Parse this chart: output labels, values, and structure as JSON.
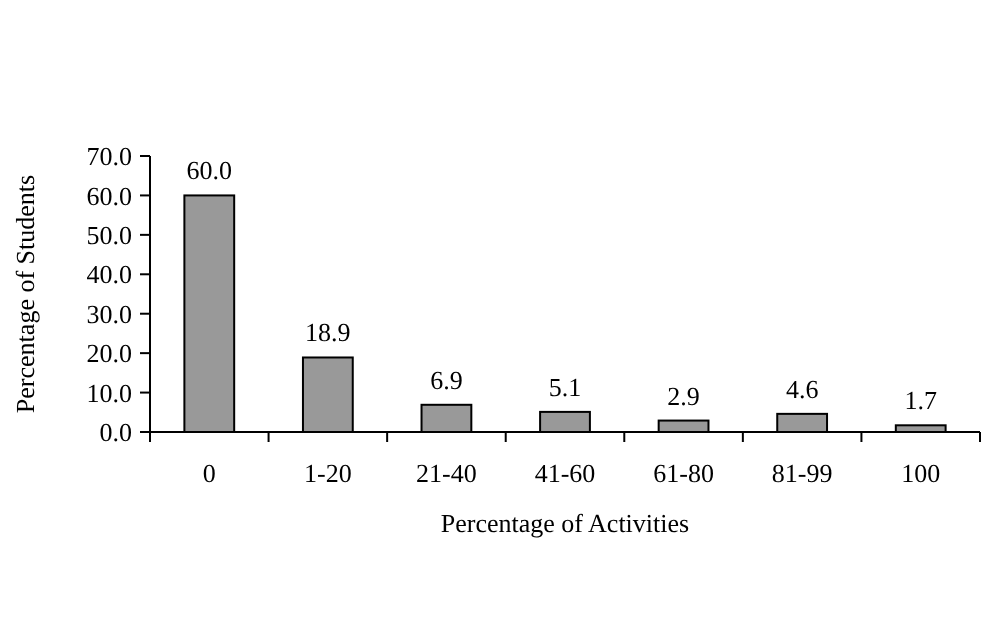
{
  "chart_data": {
    "type": "bar",
    "xlabel": "Percentage of Activities",
    "ylabel": "Percentage of Students",
    "categories": [
      "0",
      "1-20",
      "21-40",
      "41-60",
      "61-80",
      "81-99",
      "100"
    ],
    "values": [
      60.0,
      18.9,
      6.9,
      5.1,
      2.9,
      4.6,
      1.7
    ],
    "value_labels": [
      "60.0",
      "18.9",
      "6.9",
      "5.1",
      "2.9",
      "4.6",
      "1.7"
    ],
    "color": "#999999",
    "ylim": [
      0,
      70
    ],
    "yticks": [
      {
        "value": 0,
        "label": "0.0"
      },
      {
        "value": 10,
        "label": "10.0"
      },
      {
        "value": 20,
        "label": "20.0"
      },
      {
        "value": 30,
        "label": "30.0"
      },
      {
        "value": 40,
        "label": "40.0"
      },
      {
        "value": 50,
        "label": "50.0"
      },
      {
        "value": 60,
        "label": "60.0"
      },
      {
        "value": 70,
        "label": "70.0"
      }
    ],
    "grid": false
  }
}
